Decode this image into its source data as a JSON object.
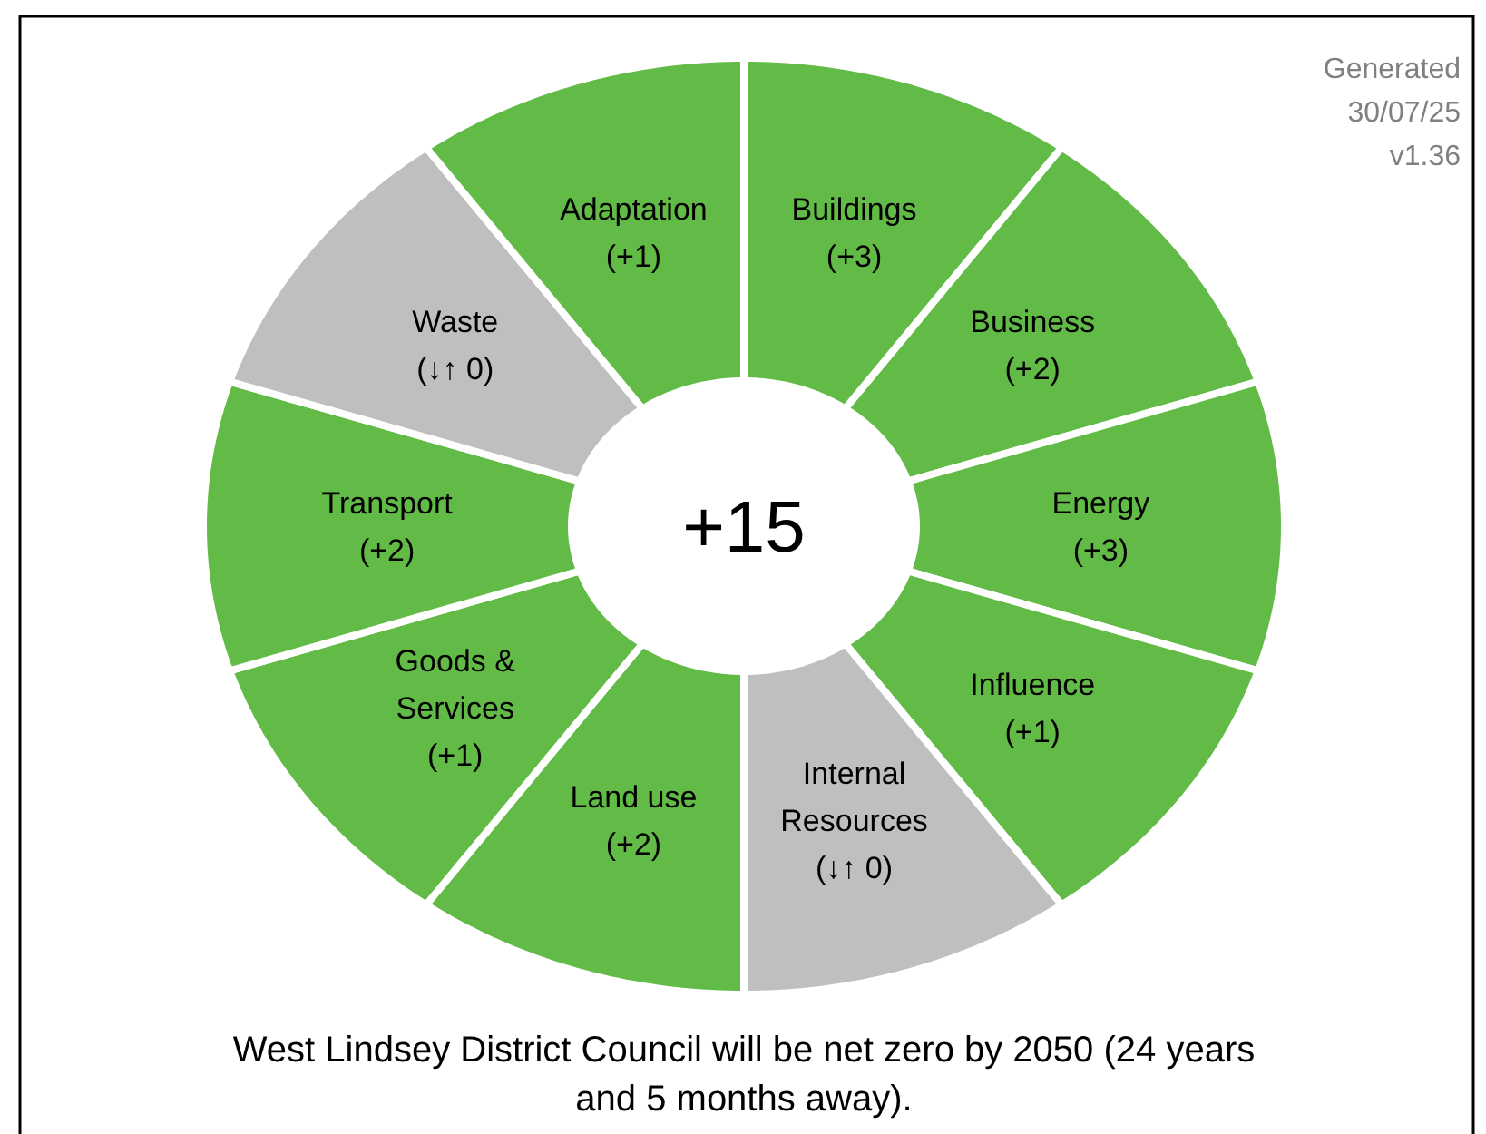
{
  "chart_data": {
    "type": "other",
    "categories": [
      "Buildings",
      "Business",
      "Energy",
      "Influence",
      "Internal Resources",
      "Land use",
      "Goods & Services",
      "Transport",
      "Waste",
      "Adaptation"
    ],
    "values": [
      3,
      2,
      3,
      1,
      0,
      2,
      1,
      2,
      0,
      1
    ],
    "value_labels": [
      "(+3)",
      "(+2)",
      "(+3)",
      "(+1)",
      "(↓↑ 0)",
      "(+2)",
      "(+1)",
      "(+2)",
      "(↓↑ 0)",
      "(+1)"
    ],
    "colors": [
      "#62bb46",
      "#62bb46",
      "#62bb46",
      "#62bb46",
      "#bfbfbf",
      "#62bb46",
      "#62bb46",
      "#62bb46",
      "#bfbfbf",
      "#62bb46"
    ],
    "title": "+15",
    "annotations": [
      "Generated",
      "30/07/25",
      "v1.36",
      "West Lindsey District Council will be net zero by 2050 (24 years and 5 months away)."
    ]
  }
}
